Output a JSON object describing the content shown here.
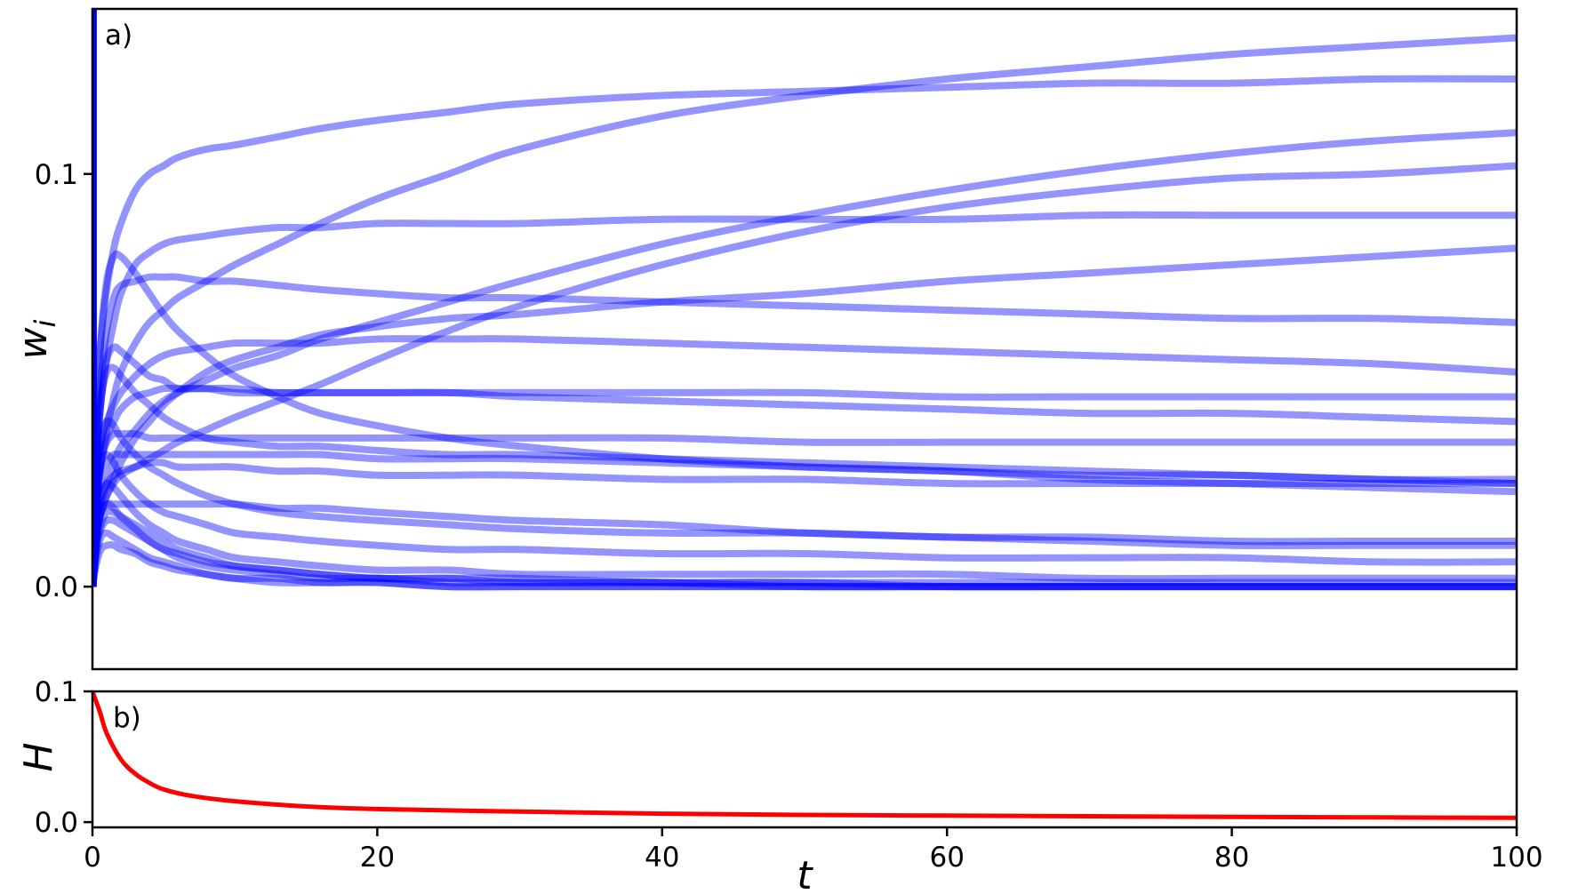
{
  "chart_data": [
    {
      "type": "line",
      "panel_label": "a)",
      "xlabel": "",
      "ylabel": "w_i",
      "xlim": [
        0,
        100
      ],
      "ylim": [
        -0.02,
        0.14
      ],
      "yticks": [
        "0.0",
        "0.1"
      ],
      "ytick_values": [
        0.0,
        0.1
      ],
      "line_color": "#0000ff",
      "line_opacity": 0.42,
      "x": [
        0,
        0.3,
        0.6,
        1,
        1.5,
        2,
        3,
        4,
        5,
        6,
        8,
        10,
        13,
        16,
        20,
        25,
        30,
        40,
        50,
        60,
        70,
        80,
        90,
        100
      ],
      "series": [
        {
          "values": [
            0,
            0.04,
            0.06,
            0.072,
            0.082,
            0.088,
            0.096,
            0.1,
            0.102,
            0.104,
            0.106,
            0.107,
            0.109,
            0.111,
            0.113,
            0.115,
            0.117,
            0.119,
            0.12,
            0.121,
            0.122,
            0.122,
            0.123,
            0.123
          ]
        },
        {
          "values": [
            0,
            0.02,
            0.03,
            0.038,
            0.046,
            0.052,
            0.059,
            0.064,
            0.067,
            0.07,
            0.074,
            0.078,
            0.083,
            0.088,
            0.094,
            0.1,
            0.106,
            0.114,
            0.119,
            0.123,
            0.126,
            0.129,
            0.131,
            0.133
          ]
        },
        {
          "values": [
            0,
            0.015,
            0.02,
            0.025,
            0.03,
            0.034,
            0.038,
            0.042,
            0.045,
            0.047,
            0.05,
            0.053,
            0.056,
            0.06,
            0.064,
            0.069,
            0.074,
            0.083,
            0.09,
            0.096,
            0.101,
            0.105,
            0.108,
            0.11
          ]
        },
        {
          "values": [
            0,
            0.012,
            0.018,
            0.022,
            0.025,
            0.027,
            0.029,
            0.031,
            0.033,
            0.035,
            0.038,
            0.041,
            0.045,
            0.049,
            0.055,
            0.062,
            0.068,
            0.078,
            0.086,
            0.092,
            0.096,
            0.099,
            0.1,
            0.102
          ]
        },
        {
          "values": [
            0,
            0.03,
            0.045,
            0.055,
            0.064,
            0.071,
            0.078,
            0.081,
            0.083,
            0.084,
            0.085,
            0.086,
            0.087,
            0.087,
            0.088,
            0.088,
            0.088,
            0.089,
            0.089,
            0.089,
            0.09,
            0.09,
            0.09,
            0.09
          ]
        },
        {
          "values": [
            0,
            0.012,
            0.018,
            0.022,
            0.026,
            0.03,
            0.036,
            0.04,
            0.044,
            0.047,
            0.052,
            0.055,
            0.058,
            0.061,
            0.063,
            0.065,
            0.066,
            0.069,
            0.071,
            0.074,
            0.076,
            0.078,
            0.08,
            0.082
          ]
        },
        {
          "values": [
            0,
            0.035,
            0.05,
            0.062,
            0.07,
            0.073,
            0.074,
            0.075,
            0.075,
            0.075,
            0.074,
            0.074,
            0.073,
            0.072,
            0.071,
            0.07,
            0.07,
            0.069,
            0.068,
            0.067,
            0.066,
            0.065,
            0.065,
            0.064
          ]
        },
        {
          "values": [
            0,
            0.025,
            0.035,
            0.04,
            0.044,
            0.047,
            0.051,
            0.054,
            0.056,
            0.057,
            0.058,
            0.059,
            0.059,
            0.059,
            0.06,
            0.06,
            0.06,
            0.059,
            0.058,
            0.057,
            0.056,
            0.055,
            0.054,
            0.052
          ]
        },
        {
          "values": [
            0,
            0.04,
            0.06,
            0.074,
            0.08,
            0.08,
            0.076,
            0.071,
            0.066,
            0.062,
            0.056,
            0.051,
            0.046,
            0.042,
            0.039,
            0.036,
            0.034,
            0.031,
            0.029,
            0.028,
            0.027,
            0.027,
            0.026,
            0.026
          ]
        },
        {
          "values": [
            0,
            0.03,
            0.045,
            0.055,
            0.058,
            0.057,
            0.054,
            0.051,
            0.05,
            0.048,
            0.048,
            0.047,
            0.047,
            0.047,
            0.047,
            0.047,
            0.047,
            0.047,
            0.047,
            0.046,
            0.046,
            0.046,
            0.046,
            0.046
          ]
        },
        {
          "values": [
            0,
            0.02,
            0.03,
            0.036,
            0.04,
            0.043,
            0.046,
            0.047,
            0.048,
            0.048,
            0.048,
            0.048,
            0.047,
            0.047,
            0.047,
            0.047,
            0.046,
            0.045,
            0.044,
            0.043,
            0.042,
            0.042,
            0.041,
            0.04
          ]
        },
        {
          "values": [
            0,
            0.02,
            0.03,
            0.035,
            0.037,
            0.037,
            0.037,
            0.036,
            0.036,
            0.036,
            0.036,
            0.036,
            0.036,
            0.036,
            0.036,
            0.036,
            0.036,
            0.036,
            0.035,
            0.035,
            0.035,
            0.035,
            0.035,
            0.035
          ]
        },
        {
          "values": [
            0,
            0.03,
            0.045,
            0.052,
            0.053,
            0.051,
            0.047,
            0.044,
            0.041,
            0.039,
            0.036,
            0.035,
            0.034,
            0.034,
            0.033,
            0.032,
            0.032,
            0.031,
            0.03,
            0.029,
            0.028,
            0.027,
            0.026,
            0.025
          ]
        },
        {
          "values": [
            0,
            0.018,
            0.026,
            0.03,
            0.032,
            0.032,
            0.032,
            0.032,
            0.032,
            0.032,
            0.032,
            0.032,
            0.032,
            0.032,
            0.031,
            0.031,
            0.031,
            0.03,
            0.029,
            0.028,
            0.026,
            0.025,
            0.024,
            0.023
          ]
        },
        {
          "values": [
            0,
            0.016,
            0.022,
            0.025,
            0.027,
            0.028,
            0.029,
            0.03,
            0.03,
            0.029,
            0.029,
            0.029,
            0.028,
            0.028,
            0.027,
            0.027,
            0.027,
            0.026,
            0.026,
            0.025,
            0.025,
            0.025,
            0.025,
            0.025
          ]
        },
        {
          "values": [
            0,
            0.025,
            0.035,
            0.04,
            0.039,
            0.036,
            0.032,
            0.029,
            0.027,
            0.025,
            0.022,
            0.02,
            0.018,
            0.017,
            0.016,
            0.015,
            0.014,
            0.013,
            0.013,
            0.012,
            0.012,
            0.011,
            0.011,
            0.011
          ]
        },
        {
          "values": [
            0,
            0.014,
            0.018,
            0.02,
            0.02,
            0.02,
            0.02,
            0.02,
            0.02,
            0.02,
            0.02,
            0.02,
            0.019,
            0.019,
            0.018,
            0.017,
            0.016,
            0.015,
            0.013,
            0.012,
            0.011,
            0.01,
            0.01,
            0.01
          ]
        },
        {
          "values": [
            0,
            0.022,
            0.03,
            0.032,
            0.03,
            0.027,
            0.023,
            0.02,
            0.018,
            0.017,
            0.015,
            0.013,
            0.012,
            0.011,
            0.01,
            0.009,
            0.009,
            0.008,
            0.008,
            0.007,
            0.007,
            0.007,
            0.006,
            0.006
          ]
        },
        {
          "values": [
            0,
            0.015,
            0.022,
            0.025,
            0.024,
            0.022,
            0.018,
            0.015,
            0.013,
            0.011,
            0.009,
            0.007,
            0.006,
            0.005,
            0.004,
            0.004,
            0.003,
            0.003,
            0.003,
            0.003,
            0.002,
            0.002,
            0.002,
            0.002
          ]
        },
        {
          "values": [
            0,
            0.012,
            0.018,
            0.02,
            0.019,
            0.017,
            0.014,
            0.011,
            0.009,
            0.008,
            0.006,
            0.005,
            0.004,
            0.003,
            0.002,
            0.002,
            0.002,
            0.001,
            0.001,
            0.001,
            0.001,
            0.001,
            0.001,
            0.001
          ]
        },
        {
          "values": [
            0,
            0.01,
            0.014,
            0.016,
            0.016,
            0.015,
            0.013,
            0.011,
            0.009,
            0.007,
            0.005,
            0.004,
            0.003,
            0.002,
            0.002,
            0.001,
            0.001,
            0.001,
            0,
            0,
            0,
            0,
            0,
            0
          ]
        },
        {
          "values": [
            0,
            0.008,
            0.012,
            0.013,
            0.012,
            0.011,
            0.009,
            0.007,
            0.006,
            0.005,
            0.003,
            0.002,
            0.002,
            0.001,
            0.001,
            0,
            0,
            0,
            0,
            0,
            0,
            0,
            0,
            0
          ]
        },
        {
          "values": [
            0,
            0.01,
            0.015,
            0.018,
            0.018,
            0.017,
            0.015,
            0.013,
            0.011,
            0.009,
            0.007,
            0.005,
            0.004,
            0.003,
            0.002,
            0.002,
            0.001,
            0.001,
            0.001,
            0,
            0,
            0,
            0,
            0
          ]
        },
        {
          "values": [
            0,
            0.006,
            0.009,
            0.01,
            0.01,
            0.009,
            0.008,
            0.006,
            0.005,
            0.004,
            0.003,
            0.002,
            0.001,
            0.001,
            0.001,
            0,
            0,
            0,
            0,
            0,
            0,
            0,
            0,
            0
          ]
        }
      ]
    },
    {
      "type": "line",
      "panel_label": "b)",
      "xlabel": "t",
      "ylabel": "H",
      "xlim": [
        0,
        100
      ],
      "ylim": [
        -0.004,
        0.1
      ],
      "xticks": [
        "0",
        "20",
        "40",
        "60",
        "80",
        "100"
      ],
      "xtick_values": [
        0,
        20,
        40,
        60,
        80,
        100
      ],
      "yticks": [
        "0.0",
        "0.1"
      ],
      "ytick_values": [
        0.0,
        0.1
      ],
      "line_color": "#ff0000",
      "x": [
        0,
        0.5,
        1,
        2,
        3,
        4,
        5,
        7,
        10,
        15,
        20,
        30,
        40,
        50,
        60,
        70,
        80,
        90,
        100
      ],
      "values": [
        0.1,
        0.085,
        0.068,
        0.048,
        0.037,
        0.03,
        0.025,
        0.02,
        0.016,
        0.012,
        0.01,
        0.008,
        0.0065,
        0.0055,
        0.005,
        0.0045,
        0.004,
        0.0036,
        0.0033
      ]
    }
  ]
}
